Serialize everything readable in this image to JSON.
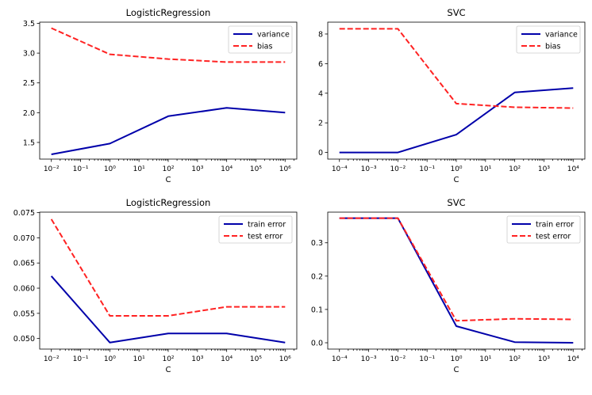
{
  "chart_data": [
    {
      "type": "line",
      "title": "LogisticRegression",
      "xlabel": "C",
      "ylabel": "",
      "xscale": "log",
      "x": [
        0.01,
        1,
        100,
        10000,
        1000000
      ],
      "xticks": [
        -2,
        -1,
        0,
        1,
        2,
        3,
        4,
        5,
        6
      ],
      "xlim_exp": [
        -2.4,
        6.4
      ],
      "ylim": [
        1.22,
        3.52
      ],
      "yticks": [
        "1.5",
        "2.0",
        "2.5",
        "3.0",
        "3.5"
      ],
      "legend_position": "top-right",
      "series": [
        {
          "name": "variance",
          "style": "solid",
          "color": "#0000aa",
          "values": [
            1.3,
            1.48,
            1.94,
            2.08,
            2.0
          ]
        },
        {
          "name": "bias",
          "style": "dashed",
          "color": "#ff2222",
          "values": [
            3.42,
            2.98,
            2.9,
            2.85,
            2.85
          ]
        }
      ]
    },
    {
      "type": "line",
      "title": "SVC",
      "xlabel": "C",
      "ylabel": "",
      "xscale": "log",
      "x": [
        0.0001,
        0.01,
        1,
        100,
        10000
      ],
      "xticks": [
        -4,
        -3,
        -2,
        -1,
        0,
        1,
        2,
        3,
        4
      ],
      "xlim_exp": [
        -4.4,
        4.4
      ],
      "ylim": [
        -0.45,
        8.8
      ],
      "yticks": [
        "0",
        "2",
        "4",
        "6",
        "8"
      ],
      "legend_position": "top-right",
      "series": [
        {
          "name": "variance",
          "style": "solid",
          "color": "#0000aa",
          "values": [
            0.0,
            0.0,
            1.2,
            4.05,
            4.35
          ]
        },
        {
          "name": "bias",
          "style": "dashed",
          "color": "#ff2222",
          "values": [
            8.35,
            8.35,
            3.3,
            3.05,
            3.0
          ]
        }
      ]
    },
    {
      "type": "line",
      "title": "LogisticRegression",
      "xlabel": "C",
      "ylabel": "",
      "xscale": "log",
      "x": [
        0.01,
        1,
        100,
        10000,
        1000000
      ],
      "xticks": [
        -2,
        -1,
        0,
        1,
        2,
        3,
        4,
        5,
        6
      ],
      "xlim_exp": [
        -2.4,
        6.4
      ],
      "ylim": [
        0.0479,
        0.0751
      ],
      "yticks": [
        "0.050",
        "0.055",
        "0.060",
        "0.065",
        "0.070",
        "0.075"
      ],
      "legend_position": "top-right",
      "series": [
        {
          "name": "train error",
          "style": "solid",
          "color": "#0000aa",
          "values": [
            0.0624,
            0.0492,
            0.051,
            0.051,
            0.0492
          ]
        },
        {
          "name": "test error",
          "style": "dashed",
          "color": "#ff2222",
          "values": [
            0.0737,
            0.0545,
            0.0545,
            0.0563,
            0.0563
          ]
        }
      ]
    },
    {
      "type": "line",
      "title": "SVC",
      "xlabel": "C",
      "ylabel": "",
      "xscale": "log",
      "x": [
        0.0001,
        0.01,
        1,
        100,
        10000
      ],
      "xticks": [
        -4,
        -3,
        -2,
        -1,
        0,
        1,
        2,
        3,
        4
      ],
      "xlim_exp": [
        -4.4,
        4.4
      ],
      "ylim": [
        -0.019,
        0.392
      ],
      "yticks": [
        "0.0",
        "0.1",
        "0.2",
        "0.3"
      ],
      "legend_position": "top-right",
      "series": [
        {
          "name": "train error",
          "style": "solid",
          "color": "#0000aa",
          "values": [
            0.374,
            0.374,
            0.05,
            0.002,
            0.0
          ]
        },
        {
          "name": "test error",
          "style": "dashed",
          "color": "#ff2222",
          "values": [
            0.374,
            0.374,
            0.066,
            0.072,
            0.07
          ]
        }
      ]
    }
  ]
}
